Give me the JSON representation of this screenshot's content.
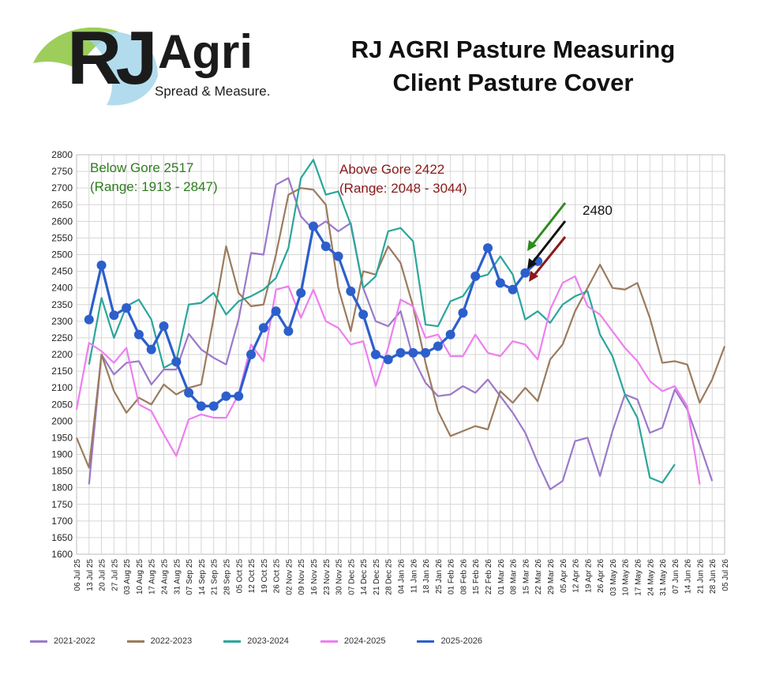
{
  "brand": {
    "name_rj": "RJ",
    "name_agri": "Agri",
    "tagline": "Spread & Measure.",
    "colors": {
      "leaf_green": "#8cc63f",
      "leaf_blue": "#9fd3e8"
    }
  },
  "title_line1": "RJ AGRI Pasture Measuring",
  "title_line2": "Client Pasture Cover",
  "annotations": {
    "below_gore": "Below Gore 2517",
    "below_gore_range": "(Range: 1913 - 2847)",
    "above_gore": "Above Gore 2422",
    "above_gore_range": "(Range: 2048 - 3044)",
    "current_value": "2480",
    "colors": {
      "below": "#2e7d1e",
      "above": "#8b1a1a"
    }
  },
  "chart_data": {
    "type": "line",
    "ylim": [
      1600,
      2800
    ],
    "yticks": [
      1600,
      1650,
      1700,
      1750,
      1800,
      1850,
      1900,
      1950,
      2000,
      2050,
      2100,
      2150,
      2200,
      2250,
      2300,
      2350,
      2400,
      2450,
      2500,
      2550,
      2600,
      2650,
      2700,
      2750,
      2800
    ],
    "categories": [
      "06 Jul 25",
      "13 Jul 25",
      "20 Jul 25",
      "27 Jul 25",
      "03 Aug 25",
      "10 Aug 25",
      "17 Aug 25",
      "24 Aug 25",
      "31 Aug 25",
      "07 Sep 25",
      "14 Sep 25",
      "21 Sep 25",
      "28 Sep 25",
      "05 Oct 25",
      "12 Oct 25",
      "19 Oct 25",
      "26 Oct 25",
      "02 Nov 25",
      "09 Nov 25",
      "16 Nov 25",
      "23 Nov 25",
      "30 Nov 25",
      "07 Dec 25",
      "14 Dec 25",
      "21 Dec 25",
      "28 Dec 25",
      "04 Jan 26",
      "11 Jan 26",
      "18 Jan 26",
      "25 Jan 26",
      "01 Feb 26",
      "08 Feb 26",
      "15 Feb 26",
      "22 Feb 26",
      "01 Mar 26",
      "08 Mar 26",
      "15 Mar 26",
      "22 Mar 26",
      "29 Mar 26",
      "05 Apr 26",
      "12 Apr 26",
      "19 Apr 26",
      "26 Apr 26",
      "03 May 26",
      "10 May 26",
      "17 May 26",
      "24 May 26",
      "31 May 26",
      "07 Jun 26",
      "14 Jun 26",
      "21 Jun 26",
      "28 Jun 26",
      "05 Jul 26"
    ],
    "grid": true,
    "legend_position": "bottom-left",
    "series": [
      {
        "name": "2021-2022",
        "color": "#9b79c9",
        "markers": false,
        "values": [
          null,
          1810,
          2200,
          2140,
          2175,
          2180,
          2110,
          2155,
          2155,
          2262,
          2215,
          2190,
          2170,
          2305,
          2505,
          2500,
          2710,
          2730,
          2615,
          2575,
          2600,
          2570,
          2595,
          2400,
          2300,
          2285,
          2330,
          2190,
          2115,
          2075,
          2080,
          2105,
          2085,
          2125,
          2075,
          2025,
          1965,
          1875,
          1795,
          1820,
          1940,
          1950,
          1835,
          1970,
          2080,
          2065,
          1965,
          1980,
          2095,
          2035,
          1930,
          1820,
          null
        ]
      },
      {
        "name": "2022-2023",
        "color": "#9b7b5e",
        "markers": false,
        "values": [
          1950,
          1860,
          2200,
          2090,
          2025,
          2070,
          2050,
          2110,
          2080,
          2100,
          2110,
          2310,
          2525,
          2385,
          2345,
          2350,
          2500,
          2680,
          2700,
          2695,
          2650,
          2400,
          2270,
          2450,
          2440,
          2525,
          2475,
          2345,
          2175,
          2030,
          1955,
          1970,
          1985,
          1975,
          2090,
          2055,
          2100,
          2060,
          2185,
          2230,
          2330,
          2400,
          2470,
          2400,
          2395,
          2415,
          2310,
          2175,
          2180,
          2170,
          2055,
          2125,
          2225
        ]
      },
      {
        "name": "2023-2024",
        "color": "#2aa69b",
        "markers": false,
        "values": [
          null,
          2170,
          2370,
          2250,
          2345,
          2365,
          2305,
          2160,
          2180,
          2350,
          2355,
          2385,
          2320,
          2360,
          2375,
          2395,
          2430,
          2520,
          2730,
          2785,
          2680,
          2690,
          2590,
          2400,
          2435,
          2570,
          2580,
          2540,
          2290,
          2285,
          2360,
          2375,
          2430,
          2440,
          2495,
          2440,
          2305,
          2330,
          2295,
          2350,
          2375,
          2390,
          2260,
          2195,
          2080,
          2010,
          1830,
          1815,
          1870,
          null,
          null,
          null,
          null
        ]
      },
      {
        "name": "2024-2025",
        "color": "#ee7ef0",
        "markers": false,
        "values": [
          2035,
          2235,
          2210,
          2175,
          2220,
          2050,
          2030,
          1960,
          1895,
          2005,
          2020,
          2010,
          2010,
          2080,
          2230,
          2180,
          2395,
          2405,
          2310,
          2395,
          2300,
          2280,
          2230,
          2240,
          2105,
          2220,
          2365,
          2345,
          2250,
          2260,
          2195,
          2195,
          2260,
          2205,
          2195,
          2240,
          2230,
          2185,
          2335,
          2415,
          2435,
          2345,
          2320,
          2270,
          2220,
          2180,
          2120,
          2090,
          2105,
          2045,
          1810,
          null,
          null
        ]
      },
      {
        "name": "2025-2026",
        "color": "#2c5fcc",
        "markers": true,
        "values": [
          null,
          2305,
          2468,
          2318,
          2340,
          2260,
          2215,
          2285,
          2178,
          2085,
          2045,
          2045,
          2075,
          2075,
          2200,
          2280,
          2330,
          2270,
          2385,
          2585,
          2525,
          2495,
          2390,
          2320,
          2200,
          2185,
          2205,
          2205,
          2205,
          2225,
          2260,
          2325,
          2435,
          2520,
          2415,
          2395,
          2445,
          2480,
          null,
          null,
          null,
          null,
          null,
          null,
          null,
          null,
          null,
          null,
          null,
          null,
          null,
          null,
          null
        ]
      }
    ]
  }
}
